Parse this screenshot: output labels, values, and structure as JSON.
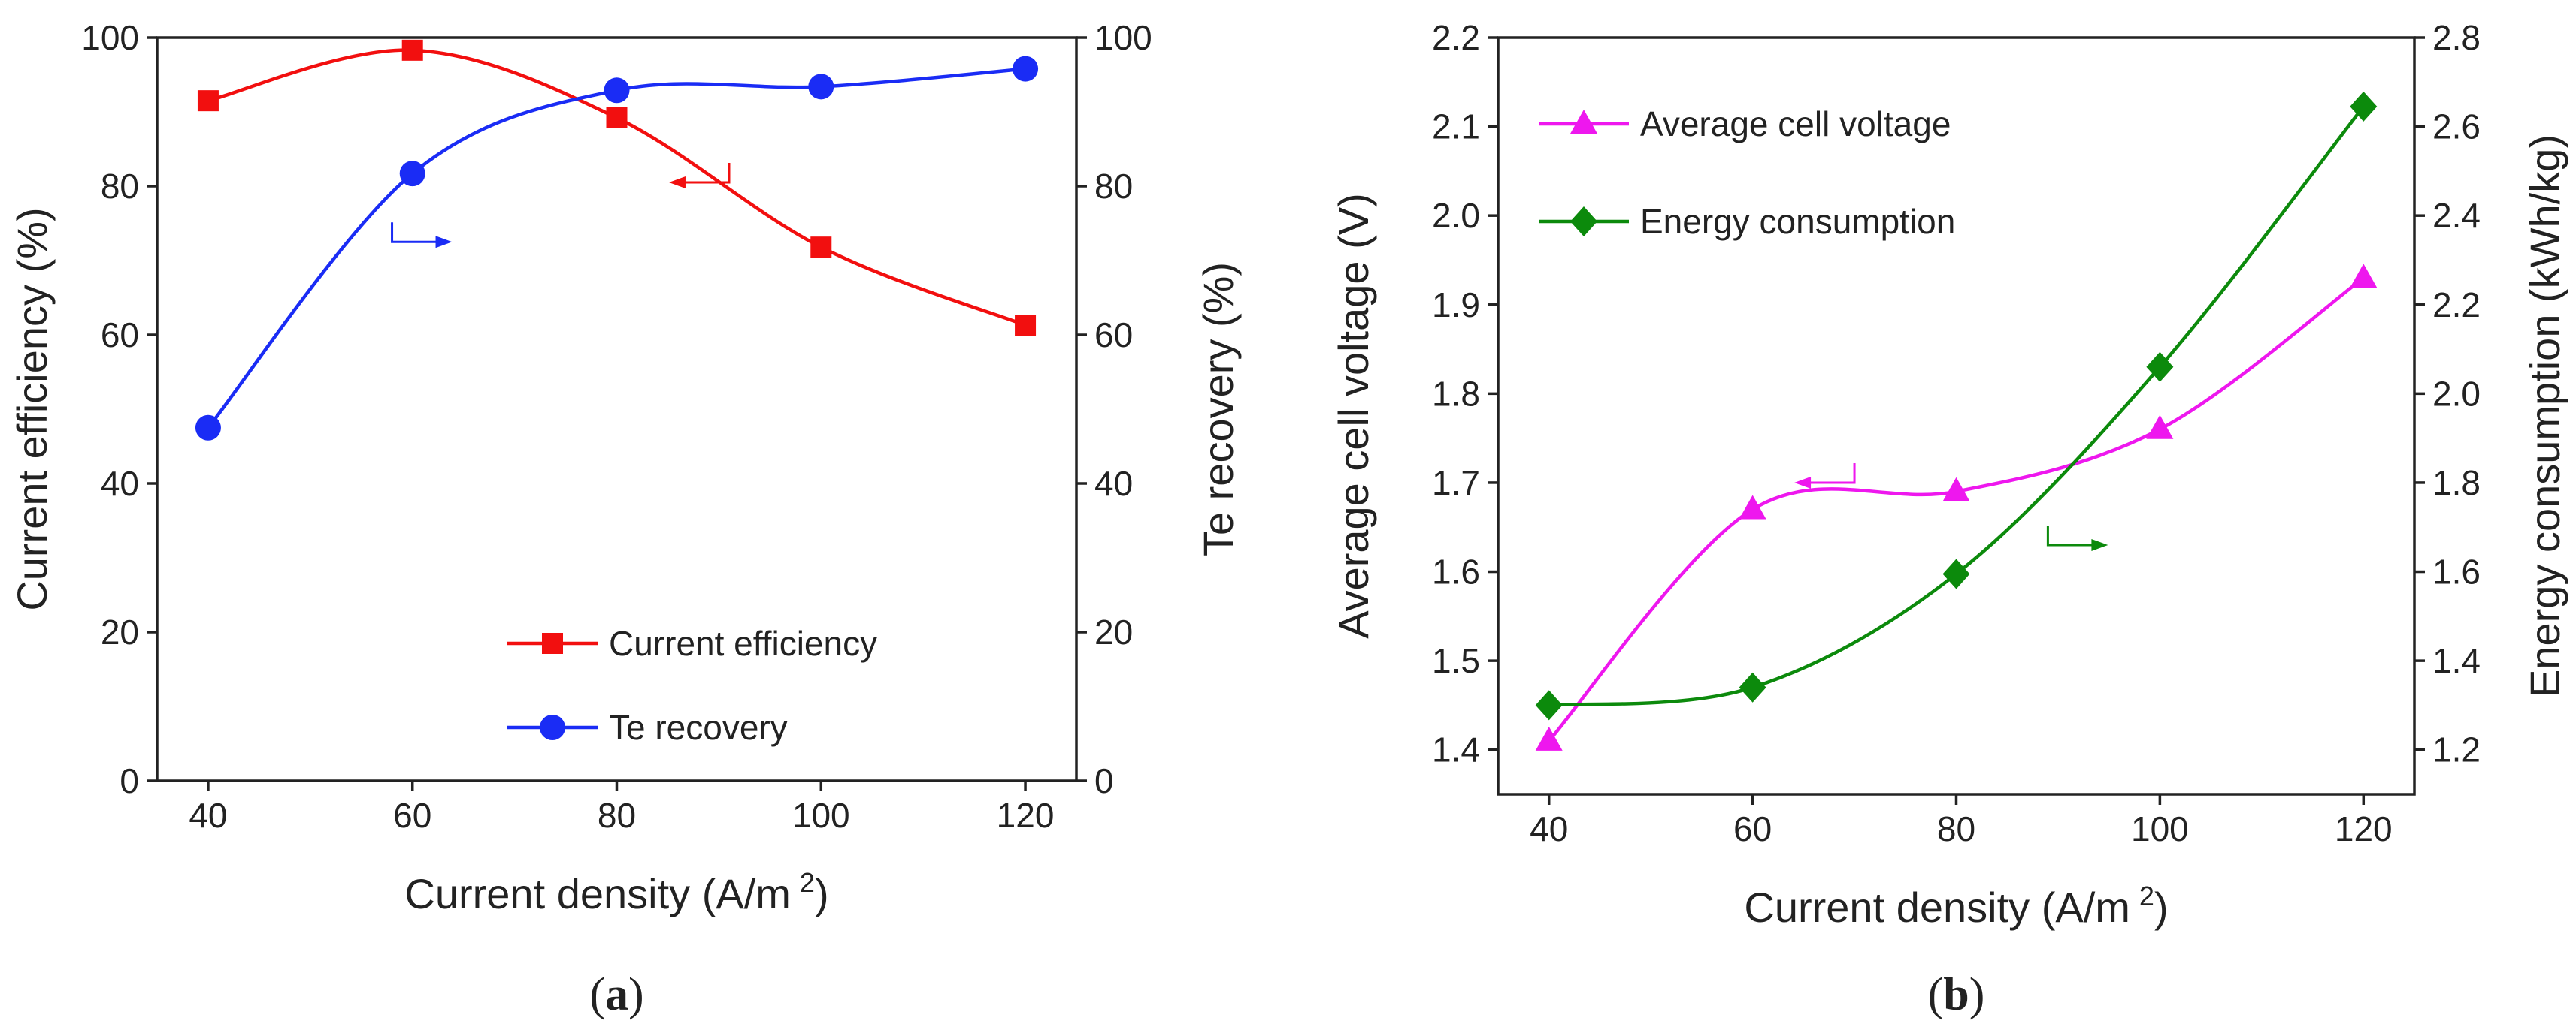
{
  "colors": {
    "current_efficiency": "#f20f0f",
    "te_recovery": "#1a2cf5",
    "average_cell_voltage": "#ee17ee",
    "energy_consumption": "#0c8a0c",
    "axis": "#222222"
  },
  "chart_data": [
    {
      "type": "line",
      "panel": "(a)",
      "panel_letter": "a",
      "xlabel": "Current density (A/m",
      "xlabel_sup": "2",
      "xlabel_close": ")",
      "ylabel_left": "Current efficiency (%)",
      "ylabel_right": "Te recovery  (%)",
      "xlim": [
        35,
        125
      ],
      "ylim_left": [
        0,
        100
      ],
      "ylim_right": [
        0,
        100
      ],
      "xticks": [
        40,
        60,
        80,
        100,
        120
      ],
      "yticks_left": [
        0,
        20,
        40,
        60,
        80,
        100
      ],
      "yticks_right": [
        0,
        20,
        40,
        60,
        80,
        100
      ],
      "legend_position": "lower-right",
      "series": [
        {
          "name": "Current efficiency",
          "axis": "left",
          "marker": "square",
          "color_key": "current_efficiency",
          "x": [
            40,
            60,
            80,
            100,
            120
          ],
          "y": [
            91.5,
            98.3,
            89.2,
            71.8,
            61.3
          ]
        },
        {
          "name": "Te recovery",
          "axis": "right",
          "marker": "circle",
          "color_key": "te_recovery",
          "x": [
            40,
            60,
            80,
            100,
            120
          ],
          "y": [
            47.5,
            81.7,
            92.9,
            93.4,
            95.8
          ]
        }
      ],
      "annotations": [
        {
          "points_to": "right",
          "series": "Te recovery",
          "at": [
            58,
            72.5
          ]
        },
        {
          "points_to": "left",
          "series": "Current efficiency",
          "at": [
            91,
            80.5
          ]
        }
      ]
    },
    {
      "type": "line",
      "panel": "(b)",
      "panel_letter": "b",
      "xlabel": "Current density (A/m",
      "xlabel_sup": "2",
      "xlabel_close": ")",
      "ylabel_left": "Average cell voltage (V)",
      "ylabel_right": "Energy consumption  (kWh/kg)",
      "xlim": [
        35,
        125
      ],
      "ylim_left": [
        1.35,
        2.2
      ],
      "ylim_right": [
        1.1,
        2.8
      ],
      "xticks": [
        40,
        60,
        80,
        100,
        120
      ],
      "yticks_left": [
        1.4,
        1.5,
        1.6,
        1.7,
        1.8,
        1.9,
        2.0,
        2.1,
        2.2
      ],
      "yticks_right": [
        1.2,
        1.4,
        1.6,
        1.8,
        2.0,
        2.2,
        2.4,
        2.6,
        2.8
      ],
      "legend_position": "top-left",
      "series": [
        {
          "name": "Average cell voltage",
          "axis": "left",
          "marker": "triangle",
          "color_key": "average_cell_voltage",
          "x": [
            40,
            60,
            80,
            100,
            120
          ],
          "y": [
            1.41,
            1.67,
            1.69,
            1.76,
            1.93
          ]
        },
        {
          "name": "Energy consumption",
          "axis": "right",
          "marker": "diamond",
          "color_key": "energy_consumption",
          "x": [
            40,
            60,
            80,
            100,
            120
          ],
          "y": [
            1.3,
            1.34,
            1.595,
            2.06,
            2.645
          ]
        }
      ],
      "annotations": [
        {
          "points_to": "left",
          "series": "Average cell voltage",
          "at": [
            70,
            1.7
          ]
        },
        {
          "points_to": "right",
          "series": "Energy consumption",
          "at": [
            89,
            1.66
          ]
        }
      ]
    }
  ]
}
